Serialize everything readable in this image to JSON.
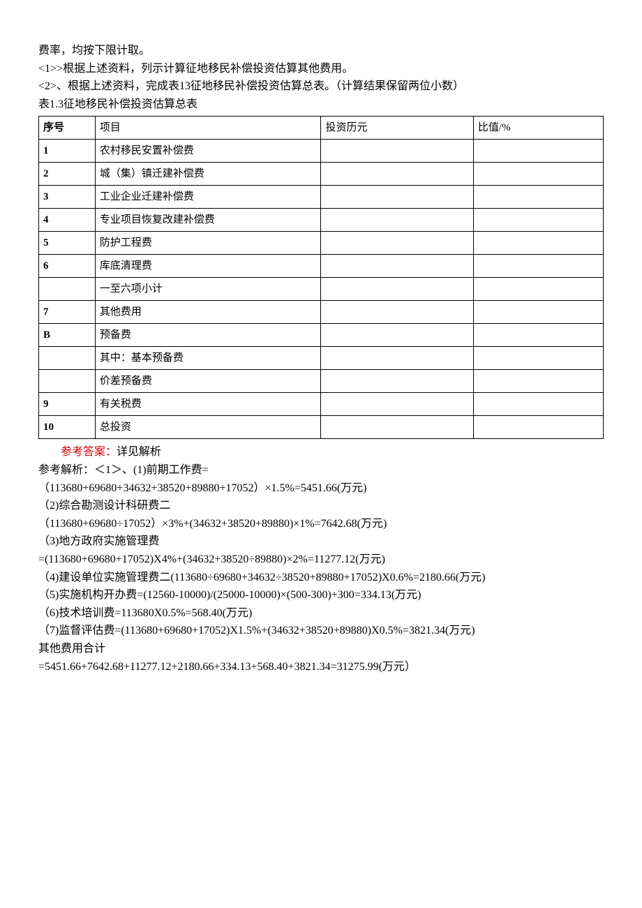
{
  "intro": {
    "line1": "费率，均按下限计取。",
    "line2": "<1>>根据上述资料，列示计算征地移民补偿投资估算其他费用。",
    "line3": "<2>、根据上述资料，完成表13征地移民补偿投资估算总表。（计算结果保留两位小数）",
    "tableTitle": "表1.3征地移民补偿投资估算总表"
  },
  "table": {
    "header": {
      "c1": "序号",
      "c2": "项目",
      "c3": "投资历元",
      "c4": "比值/%"
    },
    "rows": [
      {
        "c1": "1",
        "c2": "农村移民安置补偿费",
        "c3": "",
        "c4": ""
      },
      {
        "c1": "2",
        "c2": "城（集）镇迁建补偿费",
        "c3": "",
        "c4": ""
      },
      {
        "c1": "3",
        "c2": "工业企业迁建补偿费",
        "c3": "",
        "c4": ""
      },
      {
        "c1": "4",
        "c2": "专业项目恢复改建补偿费",
        "c3": "",
        "c4": ""
      },
      {
        "c1": "5",
        "c2": "防护工程费",
        "c3": "",
        "c4": ""
      },
      {
        "c1": "6",
        "c2": "库底清理费",
        "c3": "",
        "c4": ""
      },
      {
        "c1": "",
        "c2": "一至六项小计",
        "c3": "",
        "c4": ""
      },
      {
        "c1": "7",
        "c2": "其他费用",
        "c3": "",
        "c4": ""
      },
      {
        "c1": "B",
        "c2": "预备费",
        "c3": "",
        "c4": ""
      },
      {
        "c1": "",
        "c2": "其中：基本预备费",
        "c3": "",
        "c4": ""
      },
      {
        "c1": "",
        "c2": "价差预备费",
        "c3": "",
        "c4": ""
      },
      {
        "c1": "9",
        "c2": "有关税费",
        "c3": "",
        "c4": ""
      },
      {
        "c1": "10",
        "c2": "总投资",
        "c3": "",
        "c4": ""
      }
    ]
  },
  "answer": {
    "refLabel": "参考答案：",
    "refText": "详见解析",
    "lines": [
      "参考解析：＜1＞、(1)前期工作费=",
      "（113680+69680+34632+38520+89880+17052）×1.5%=5451.66(万元)",
      "（2)综合勘测设计科研费二",
      "（113680+69680÷17052）×3%+(34632+38520+89880)×1%=7642.68(万元)",
      "（3)地方政府实施管理费",
      "=(113680+69680+17052)X4%+(34632+38520÷89880)×2%=11277.12(万元)",
      "（4)建设单位实施管理费二(113680÷69680+34632÷38520+89880+17052)X0.6%=2180.66(万元)",
      "（5)实施机构开办费=(12560-10000)/(25000-10000)×(500-300)+300=334.13(万元)",
      "（6)技术培训费=113680X0.5%=568.40(万元)",
      "（7)监督评估费=(113680+69680+17052)X1.5%+(34632+38520+89880)X0.5%=3821.34(万元)",
      "其他费用合计",
      "=5451.66+7642.68+11277.12+2180.66+334.13+568.40+3821.34=31275.99(万元）"
    ]
  }
}
